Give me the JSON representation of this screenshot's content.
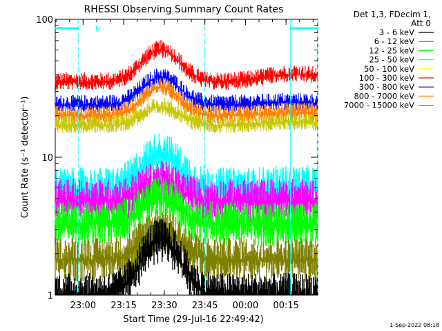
{
  "chart_data": {
    "type": "line",
    "title": "RHESSI Observing Summary Count Rates",
    "xlabel": "Start Time (29-Jul-16 22:49:42)",
    "ylabel": "Count Rate (s⁻¹ detector⁻¹)",
    "x_range_minutes": [
      0,
      97
    ],
    "x_ticks": [
      {
        "minute": 10.3,
        "label": "23:00"
      },
      {
        "minute": 25.3,
        "label": "23:15"
      },
      {
        "minute": 40.3,
        "label": "23:30"
      },
      {
        "minute": 55.3,
        "label": "23:45"
      },
      {
        "minute": 70.3,
        "label": "00:00"
      },
      {
        "minute": 85.3,
        "label": "00:15"
      }
    ],
    "y_scale": "log",
    "ylim": [
      1,
      100
    ],
    "y_ticks": [
      {
        "value": 1,
        "label": "1"
      },
      {
        "value": 10,
        "label": "10"
      },
      {
        "value": 100,
        "label": "100"
      }
    ],
    "legend": {
      "position": "right",
      "header": [
        "Det 1,3, FDecim 1,",
        "Att 0"
      ],
      "entries": [
        {
          "label": "3 - 6 keV",
          "color": "#000000"
        },
        {
          "label": "6 - 12 keV",
          "color": "#ff00ff"
        },
        {
          "label": "12 - 25 keV",
          "color": "#00ff00"
        },
        {
          "label": "25 - 50 keV",
          "color": "#00ffff"
        },
        {
          "label": "50 - 100 keV",
          "color": "#ffff00"
        },
        {
          "label": "100 - 300 keV",
          "color": "#ff0000"
        },
        {
          "label": "300 - 800 keV",
          "color": "#0000ff"
        },
        {
          "label": "800 - 7000 keV",
          "color": "#ff8000"
        },
        {
          "label": "7000 - 15000 keV",
          "color": "#808000"
        }
      ]
    },
    "series_levels": [
      {
        "color": "#ff0000",
        "base": 35,
        "peak": 60,
        "late": 40
      },
      {
        "color": "#0000ff",
        "base": 24,
        "peak": 38,
        "late": 25
      },
      {
        "color": "#ff8000",
        "base": 20,
        "peak": 32,
        "late": 21
      },
      {
        "color": "#c8c800",
        "base": 17,
        "peak": 23,
        "late": 18
      },
      {
        "color": "#00ffff",
        "base": 5.8,
        "peak": 10.5,
        "late": 6
      },
      {
        "color": "#ff00ff",
        "base": 4.8,
        "peak": 6.5,
        "late": 4.8
      },
      {
        "color": "#00ff00",
        "base": 3.3,
        "peak": 5,
        "late": 3.2
      },
      {
        "color": "#808000",
        "base": 1.8,
        "peak": 3,
        "late": 1.8
      },
      {
        "color": "#000000",
        "base": 1.0,
        "peak": 2.5,
        "late": 1.0
      }
    ],
    "annotations": {
      "night_bars_minutes": [
        [
          0,
          8.5
        ],
        [
          87,
          97
        ]
      ],
      "night_label": "N",
      "saa_dashed_lines_minutes": [
        8.5,
        55.3,
        97
      ]
    }
  },
  "timestamp": "1-Sep-2022 08:18"
}
